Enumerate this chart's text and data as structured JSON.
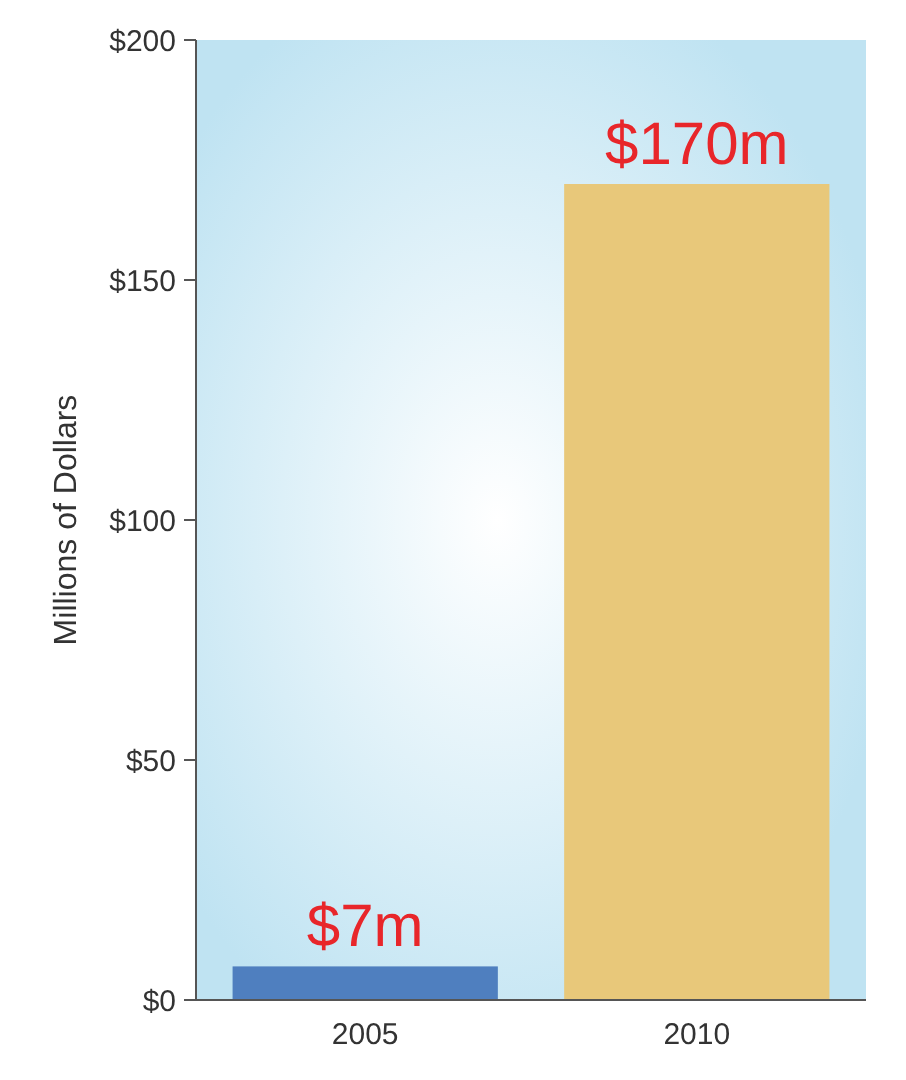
{
  "chart_data": {
    "type": "bar",
    "ylabel": "Millions of Dollars",
    "categories": [
      "2005",
      "2010"
    ],
    "values": [
      7,
      170
    ],
    "colors": [
      "#4f7fbf",
      "#e8c87a"
    ],
    "value_labels": [
      "$7m",
      "$170m"
    ],
    "ylim": [
      0,
      200
    ],
    "yticks": [
      {
        "value": 0,
        "label": "$0"
      },
      {
        "value": 50,
        "label": "$50"
      },
      {
        "value": 100,
        "label": "$100"
      },
      {
        "value": 150,
        "label": "$150"
      },
      {
        "value": 200,
        "label": "$200"
      }
    ],
    "grid": false
  }
}
